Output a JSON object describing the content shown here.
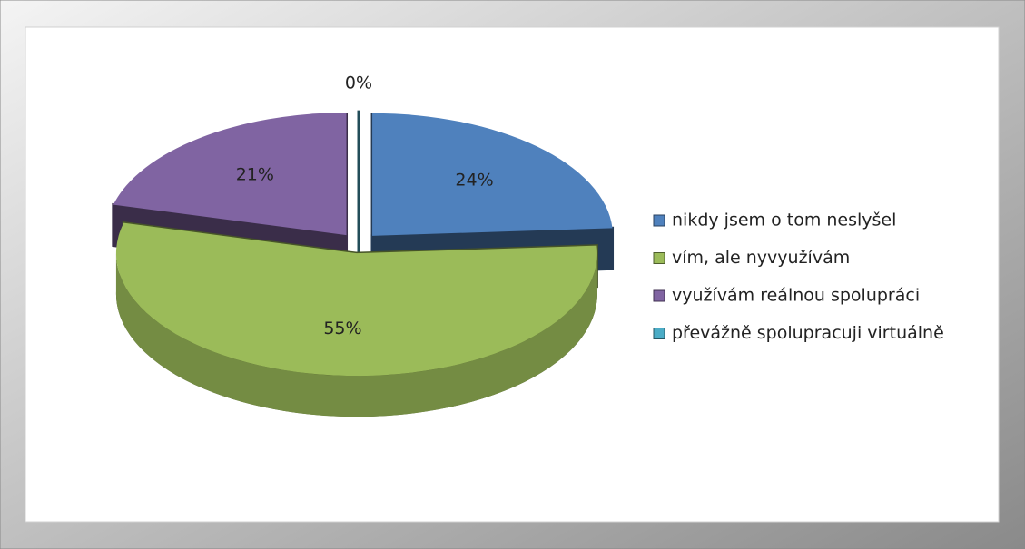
{
  "chart_data": {
    "type": "pie3d",
    "categories": [
      "nikdy jsem o tom neslyšel",
      "vím, ale nyvyužívám",
      "využívám reálnou spolupráci",
      "převážně spolupracuji virtuálně"
    ],
    "values": [
      24,
      55,
      21,
      0
    ],
    "value_labels": [
      "24%",
      "55%",
      "21%",
      "0%"
    ],
    "colors": [
      "#4f81bd",
      "#9bbb59",
      "#8064a2",
      "#4bacc6"
    ],
    "legend": "right"
  }
}
